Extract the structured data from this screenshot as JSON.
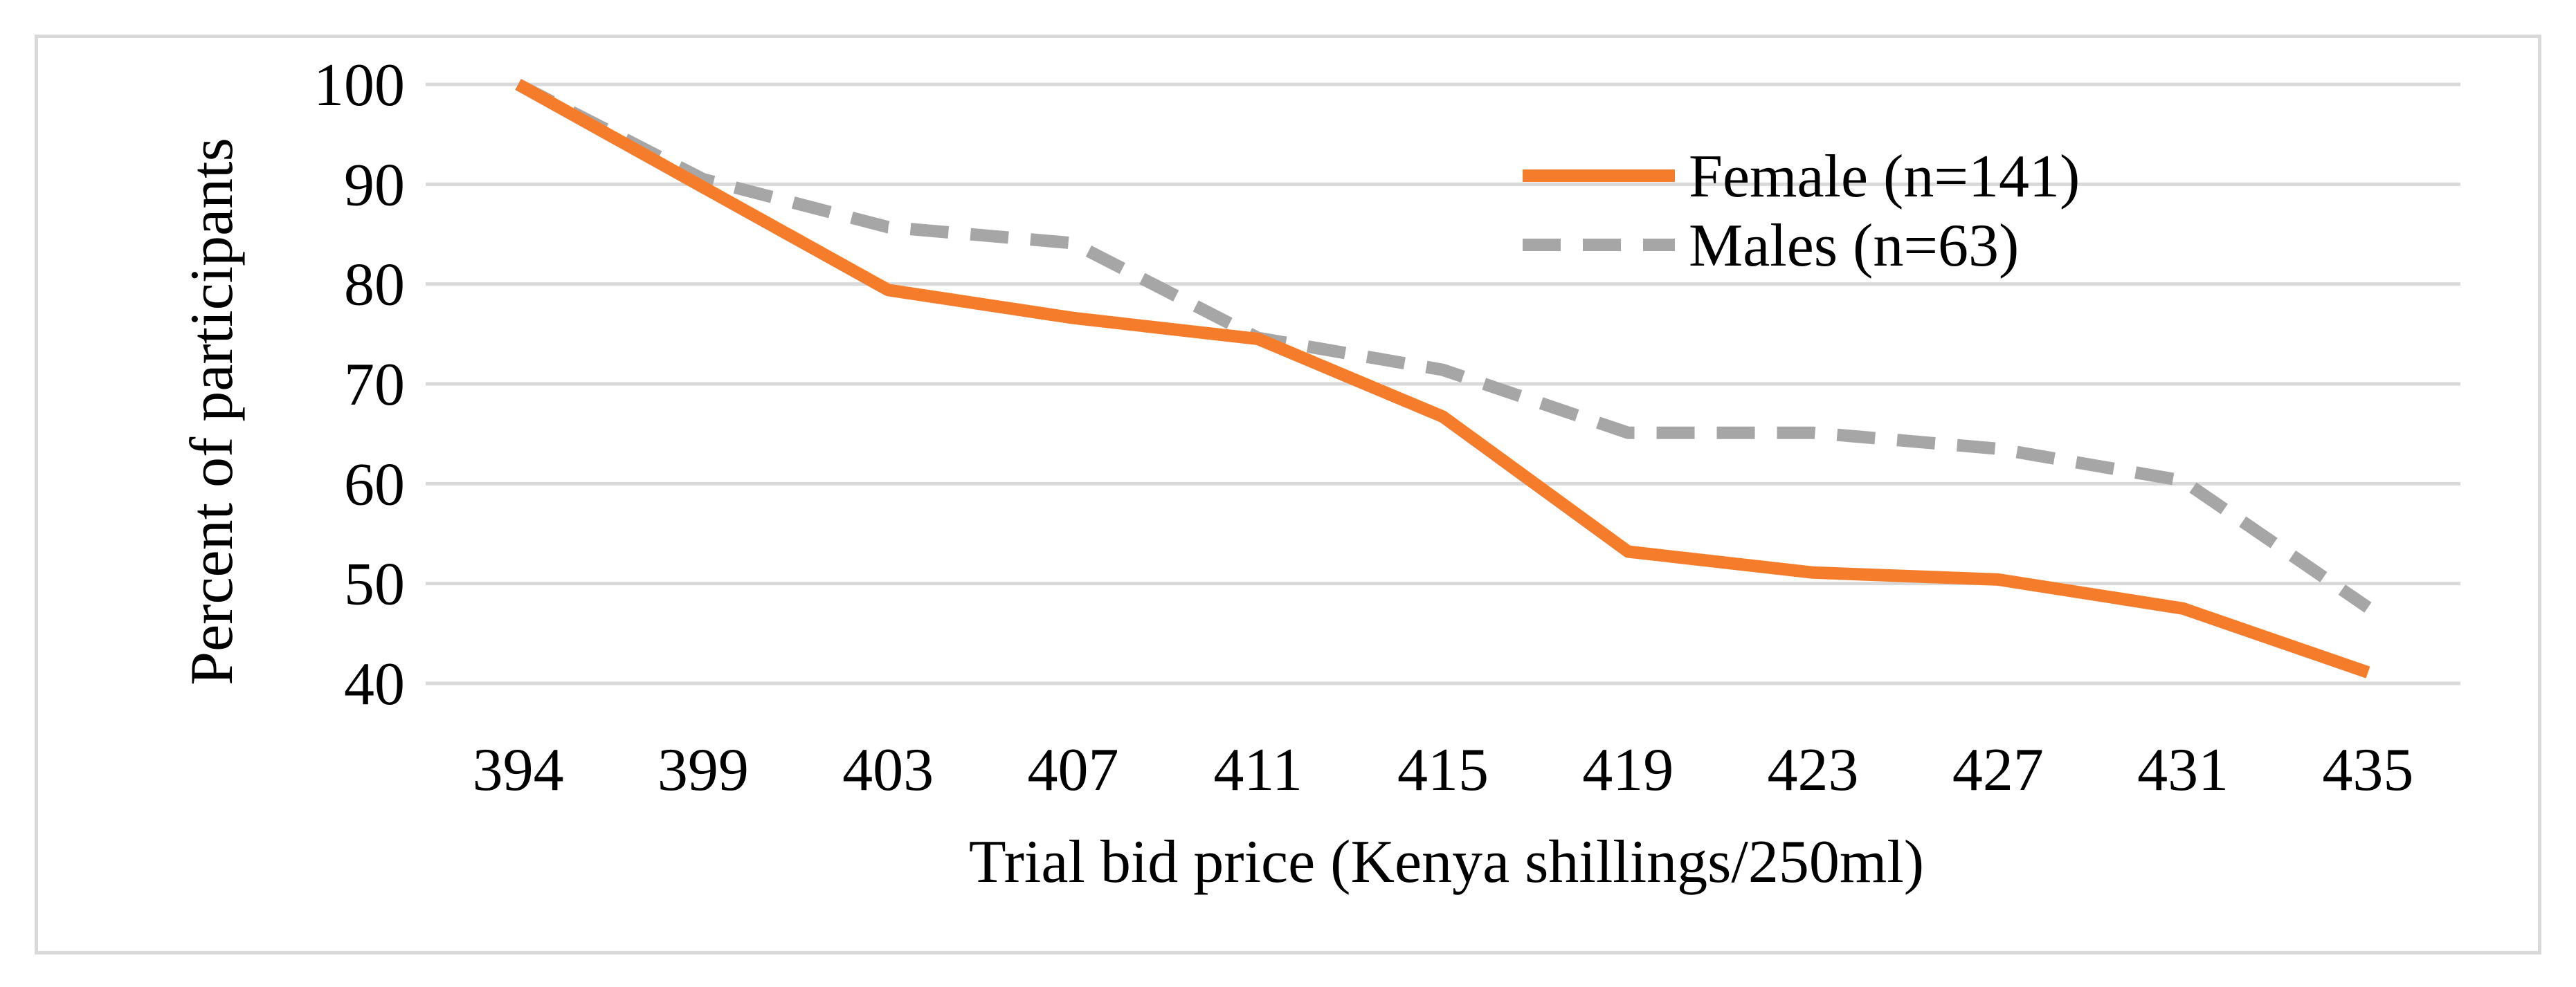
{
  "chart_data": {
    "type": "line",
    "title": "",
    "xlabel": "Trial bid price (Kenya shillings/250ml)",
    "ylabel": "Percent of participants",
    "categories": [
      "394",
      "399",
      "403",
      "407",
      "411",
      "415",
      "419",
      "423",
      "427",
      "431",
      "435"
    ],
    "ylim": [
      40,
      100
    ],
    "yticks": [
      40,
      50,
      60,
      70,
      80,
      90,
      100
    ],
    "grid": true,
    "legend_position": "top-right",
    "series": [
      {
        "name": "Female (n=141)",
        "style": "solid",
        "color": "#f47c2a",
        "values": [
          100,
          89.7,
          79.4,
          76.6,
          74.5,
          66.7,
          53.2,
          51.1,
          50.4,
          47.5,
          41.1
        ]
      },
      {
        "name": "Males (n=63)",
        "style": "dashed",
        "color": "#a6a6a6",
        "values": [
          100,
          90.5,
          85.7,
          84.1,
          74.6,
          71.4,
          65.1,
          65.1,
          63.5,
          60.3,
          47.6
        ]
      }
    ]
  }
}
